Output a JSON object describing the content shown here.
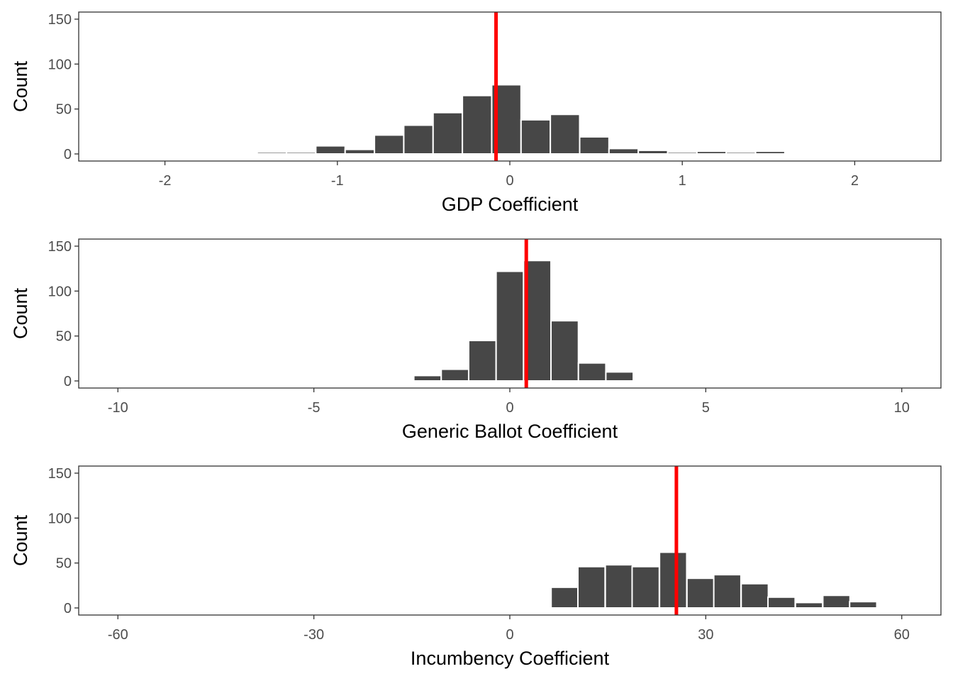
{
  "chart_data": [
    {
      "type": "bar",
      "xlabel": "GDP Coefficient",
      "ylabel": "Count",
      "xlim": [
        -2.5,
        2.5
      ],
      "ylim": [
        0,
        150
      ],
      "x_ticks": [
        -2,
        -1,
        0,
        1,
        2
      ],
      "y_ticks": [
        0,
        50,
        100,
        150
      ],
      "bin_width": 0.17,
      "bins": [
        {
          "x": -1.72,
          "count": 1
        },
        {
          "x": -1.55,
          "count": 1
        },
        {
          "x": -1.38,
          "count": 2
        },
        {
          "x": -1.21,
          "count": 2
        },
        {
          "x": -1.04,
          "count": 9
        },
        {
          "x": -0.87,
          "count": 5
        },
        {
          "x": -0.7,
          "count": 21
        },
        {
          "x": -0.53,
          "count": 32
        },
        {
          "x": -0.36,
          "count": 46
        },
        {
          "x": -0.19,
          "count": 65
        },
        {
          "x": -0.02,
          "count": 77
        },
        {
          "x": 0.15,
          "count": 38
        },
        {
          "x": 0.32,
          "count": 44
        },
        {
          "x": 0.49,
          "count": 19
        },
        {
          "x": 0.66,
          "count": 6
        },
        {
          "x": 0.83,
          "count": 4
        },
        {
          "x": 1.0,
          "count": 2
        },
        {
          "x": 1.17,
          "count": 3
        },
        {
          "x": 1.34,
          "count": 2
        },
        {
          "x": 1.51,
          "count": 3
        }
      ],
      "reference_line": {
        "x": -0.08,
        "color": "#ff0000"
      },
      "bar_color": "#474747",
      "grid": false
    },
    {
      "type": "bar",
      "xlabel": "Generic Ballot Coefficient",
      "ylabel": "Count",
      "xlim": [
        -11,
        11
      ],
      "ylim": [
        0,
        150
      ],
      "x_ticks": [
        -10,
        -5,
        0,
        5,
        10
      ],
      "y_ticks": [
        0,
        50,
        100,
        150
      ],
      "bin_width": 0.7,
      "bins": [
        {
          "x": -2.1,
          "count": 6
        },
        {
          "x": -1.4,
          "count": 13
        },
        {
          "x": -0.7,
          "count": 45
        },
        {
          "x": 0.0,
          "count": 122
        },
        {
          "x": 0.7,
          "count": 134
        },
        {
          "x": 1.4,
          "count": 67
        },
        {
          "x": 2.1,
          "count": 20
        },
        {
          "x": 2.8,
          "count": 10
        }
      ],
      "reference_line": {
        "x": 0.42,
        "color": "#ff0000"
      },
      "bar_color": "#474747",
      "grid": false
    },
    {
      "type": "bar",
      "xlabel": "Incumbency Coefficient",
      "ylabel": "Count",
      "xlim": [
        -66,
        66
      ],
      "ylim": [
        0,
        150
      ],
      "x_ticks": [
        -60,
        -30,
        0,
        30,
        60
      ],
      "y_ticks": [
        0,
        50,
        100,
        150
      ],
      "bin_width": 4.16,
      "bins": [
        {
          "x": 4.2,
          "count": 1
        },
        {
          "x": 8.4,
          "count": 23
        },
        {
          "x": 12.5,
          "count": 46
        },
        {
          "x": 16.7,
          "count": 48
        },
        {
          "x": 20.8,
          "count": 46
        },
        {
          "x": 25.0,
          "count": 62
        },
        {
          "x": 29.2,
          "count": 33
        },
        {
          "x": 33.3,
          "count": 37
        },
        {
          "x": 37.5,
          "count": 27
        },
        {
          "x": 41.6,
          "count": 12
        },
        {
          "x": 45.8,
          "count": 6
        },
        {
          "x": 50.0,
          "count": 14
        },
        {
          "x": 54.1,
          "count": 7
        }
      ],
      "reference_line": {
        "x": 25.5,
        "color": "#ff0000"
      },
      "bar_color": "#474747",
      "grid": false
    }
  ]
}
